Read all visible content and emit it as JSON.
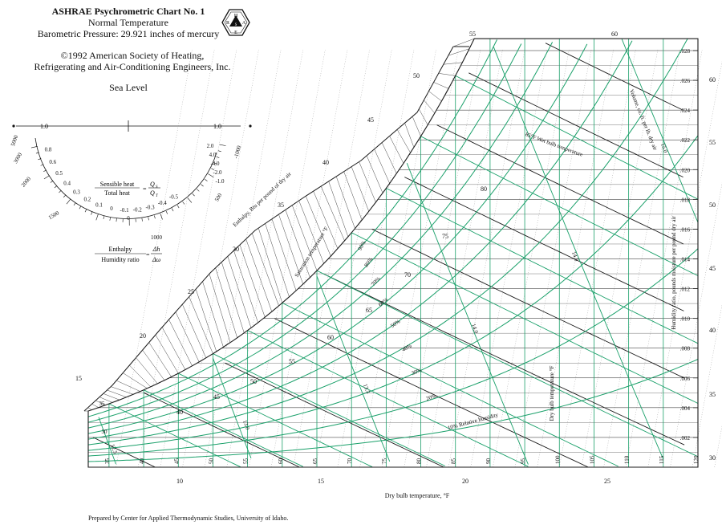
{
  "header": {
    "title": "ASHRAE Psychrometric Chart No. 1",
    "subtitle": "Normal Temperature",
    "pressure": "Barometric Pressure: 29.921 inches of mercury",
    "copyright_line1": "©1992 American Society of Heating,",
    "copyright_line2": "Refrigerating and Air-Conditioning Engineers, Inc.",
    "sea_level": "Sea Level"
  },
  "logo": {
    "letters": [
      "H",
      "R",
      "A",
      "E",
      "S"
    ]
  },
  "protractor": {
    "top_left_value": "1.0",
    "top_right_value": "1.0",
    "left_arc_labels": [
      "0.8",
      "0.6",
      "0.5",
      "0.4",
      "0.3",
      "0.2",
      "0.1",
      "0",
      "-0.1",
      "-0.2",
      "-0.3",
      "-0.4",
      "-0.5"
    ],
    "right_arc_labels": [
      "2.0",
      "4.0",
      "-4.0",
      "-2.0",
      "-1.0"
    ],
    "enthalpy_scale_labels": [
      "5000",
      "3000",
      "2000",
      "1500",
      "1000",
      "500",
      "0",
      "-1000"
    ],
    "sensible_label": "Sensible heat",
    "total_label": "Total heat",
    "qs": "Q",
    "qs_sub": "S",
    "qt": "Q",
    "qt_sub": "T",
    "enthalpy_label": "Enthalpy",
    "humidity_label": "Humidity ratio",
    "delta_h": "Δh",
    "delta_w": "Δω",
    "equals": "="
  },
  "chart_data": {
    "type": "psychrometric",
    "title": "ASHRAE Psychrometric Chart No. 1",
    "xlabel": "Dry bulb temperature, °F",
    "ylabel": "Humidity ratio, pounds moisture per pound dry air",
    "xlim": [
      32,
      120
    ],
    "ylim": [
      0,
      0.028
    ],
    "dry_bulb_ticks": [
      35,
      40,
      45,
      50,
      55,
      60,
      65,
      70,
      75,
      80,
      85,
      90,
      95,
      100,
      105,
      110,
      115,
      120
    ],
    "humidity_ratio_ticks": [
      0.002,
      0.004,
      0.006,
      0.008,
      0.01,
      0.012,
      0.014,
      0.016,
      0.018,
      0.02,
      0.022,
      0.024,
      0.026,
      0.028
    ],
    "humidity_ratio_labels": [
      ".002",
      ".004",
      ".006",
      ".008",
      ".010",
      ".012",
      ".014",
      ".016",
      ".018",
      ".020",
      ".022",
      ".024",
      ".026",
      ".028"
    ],
    "relative_humidity": [
      10,
      20,
      30,
      40,
      50,
      60,
      70,
      80,
      90,
      100
    ],
    "relative_humidity_labels": [
      "10% Relative humidity",
      "20%",
      "30%",
      "40%",
      "50%",
      "60%",
      "70%",
      "80%",
      "90%"
    ],
    "wet_bulb": [
      35,
      40,
      45,
      50,
      55,
      60,
      65,
      70,
      75,
      80,
      85
    ],
    "wet_bulb_label": "85°F Wet bulb temperature",
    "saturation_label": "Saturation temperature °F",
    "saturation_ticks": [
      35,
      40,
      45,
      50,
      55,
      60,
      65,
      70,
      75,
      80,
      85
    ],
    "enthalpy_scale_ticks": [
      10,
      15,
      20,
      25,
      30,
      35,
      40,
      45,
      50,
      55,
      60
    ],
    "enthalpy_label": "Enthalpy, Btu per pound of dry air",
    "bottom_enthalpy_ticks": [
      10,
      15,
      20,
      25
    ],
    "right_enthalpy_ticks": [
      30,
      35,
      40,
      45,
      50,
      55,
      60
    ],
    "top_enthalpy_ticks": [
      55,
      60
    ],
    "volume_ticks": [
      12.5,
      13.0,
      13.5,
      14.0,
      14.5,
      15.0
    ],
    "volume_labels": [
      "12.5",
      "13.0",
      "13.5",
      "14.0",
      "14.5",
      "15.0"
    ],
    "volume_label": "Volume, cu. ft. per lb. dry air",
    "drybulb_vertical_label": "Dry bulb temperature °F",
    "wetbulb_inline_labels": [
      "40",
      "45",
      "50",
      "55",
      "60",
      "65",
      "70",
      "75",
      "80"
    ],
    "saturation_inline_labels": [
      "30",
      "35"
    ],
    "colors": {
      "grid": "#1a1a1a",
      "rh_wetbulb": "#1aa06a",
      "dotted": "#888888"
    }
  },
  "footer": "Prepared by Center for Applied Thermodynamic Studies, University of Idaho."
}
